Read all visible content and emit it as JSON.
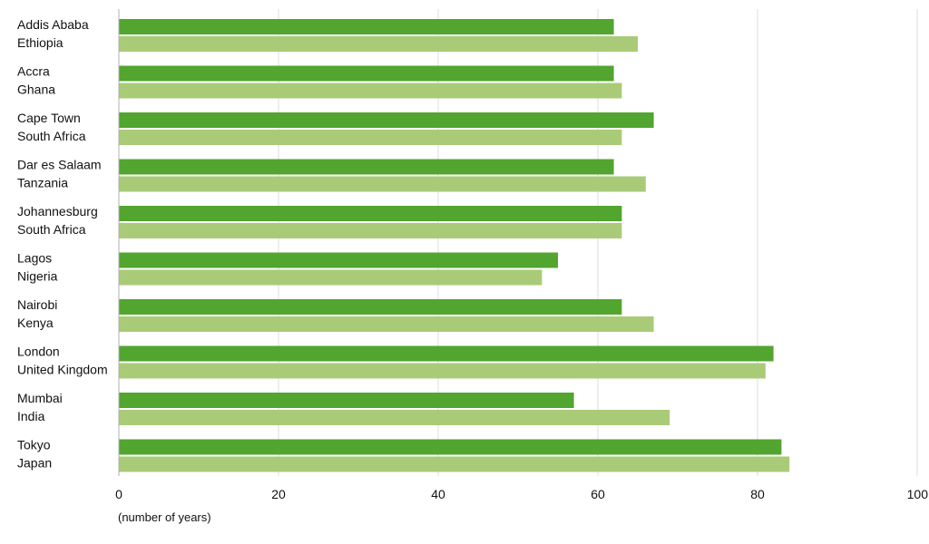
{
  "chart_data": {
    "type": "bar",
    "orientation": "horizontal",
    "categories": [
      {
        "city": "Addis Ababa",
        "country": "Ethiopia"
      },
      {
        "city": "Accra",
        "country": "Ghana"
      },
      {
        "city": "Cape Town",
        "country": "South Africa"
      },
      {
        "city": "Dar es Salaam",
        "country": "Tanzania"
      },
      {
        "city": "Johannesburg",
        "country": "South Africa"
      },
      {
        "city": "Lagos",
        "country": "Nigeria"
      },
      {
        "city": "Nairobi",
        "country": "Kenya"
      },
      {
        "city": "London",
        "country": "United Kingdom"
      },
      {
        "city": "Mumbai",
        "country": "India"
      },
      {
        "city": "Tokyo",
        "country": "Japan"
      }
    ],
    "series": [
      {
        "color": "#52a52e",
        "values": [
          62,
          62,
          67,
          62,
          63,
          55,
          63,
          82,
          57,
          83
        ]
      },
      {
        "color": "#a9cb77",
        "values": [
          65,
          63,
          63,
          66,
          63,
          53,
          67,
          81,
          69,
          84
        ]
      }
    ],
    "x_ticks": [
      0,
      20,
      40,
      60,
      80,
      100
    ],
    "xlim": [
      0,
      100
    ],
    "xlabel": "(number of years)",
    "grid": true,
    "gridline_color": "#dddddd"
  }
}
